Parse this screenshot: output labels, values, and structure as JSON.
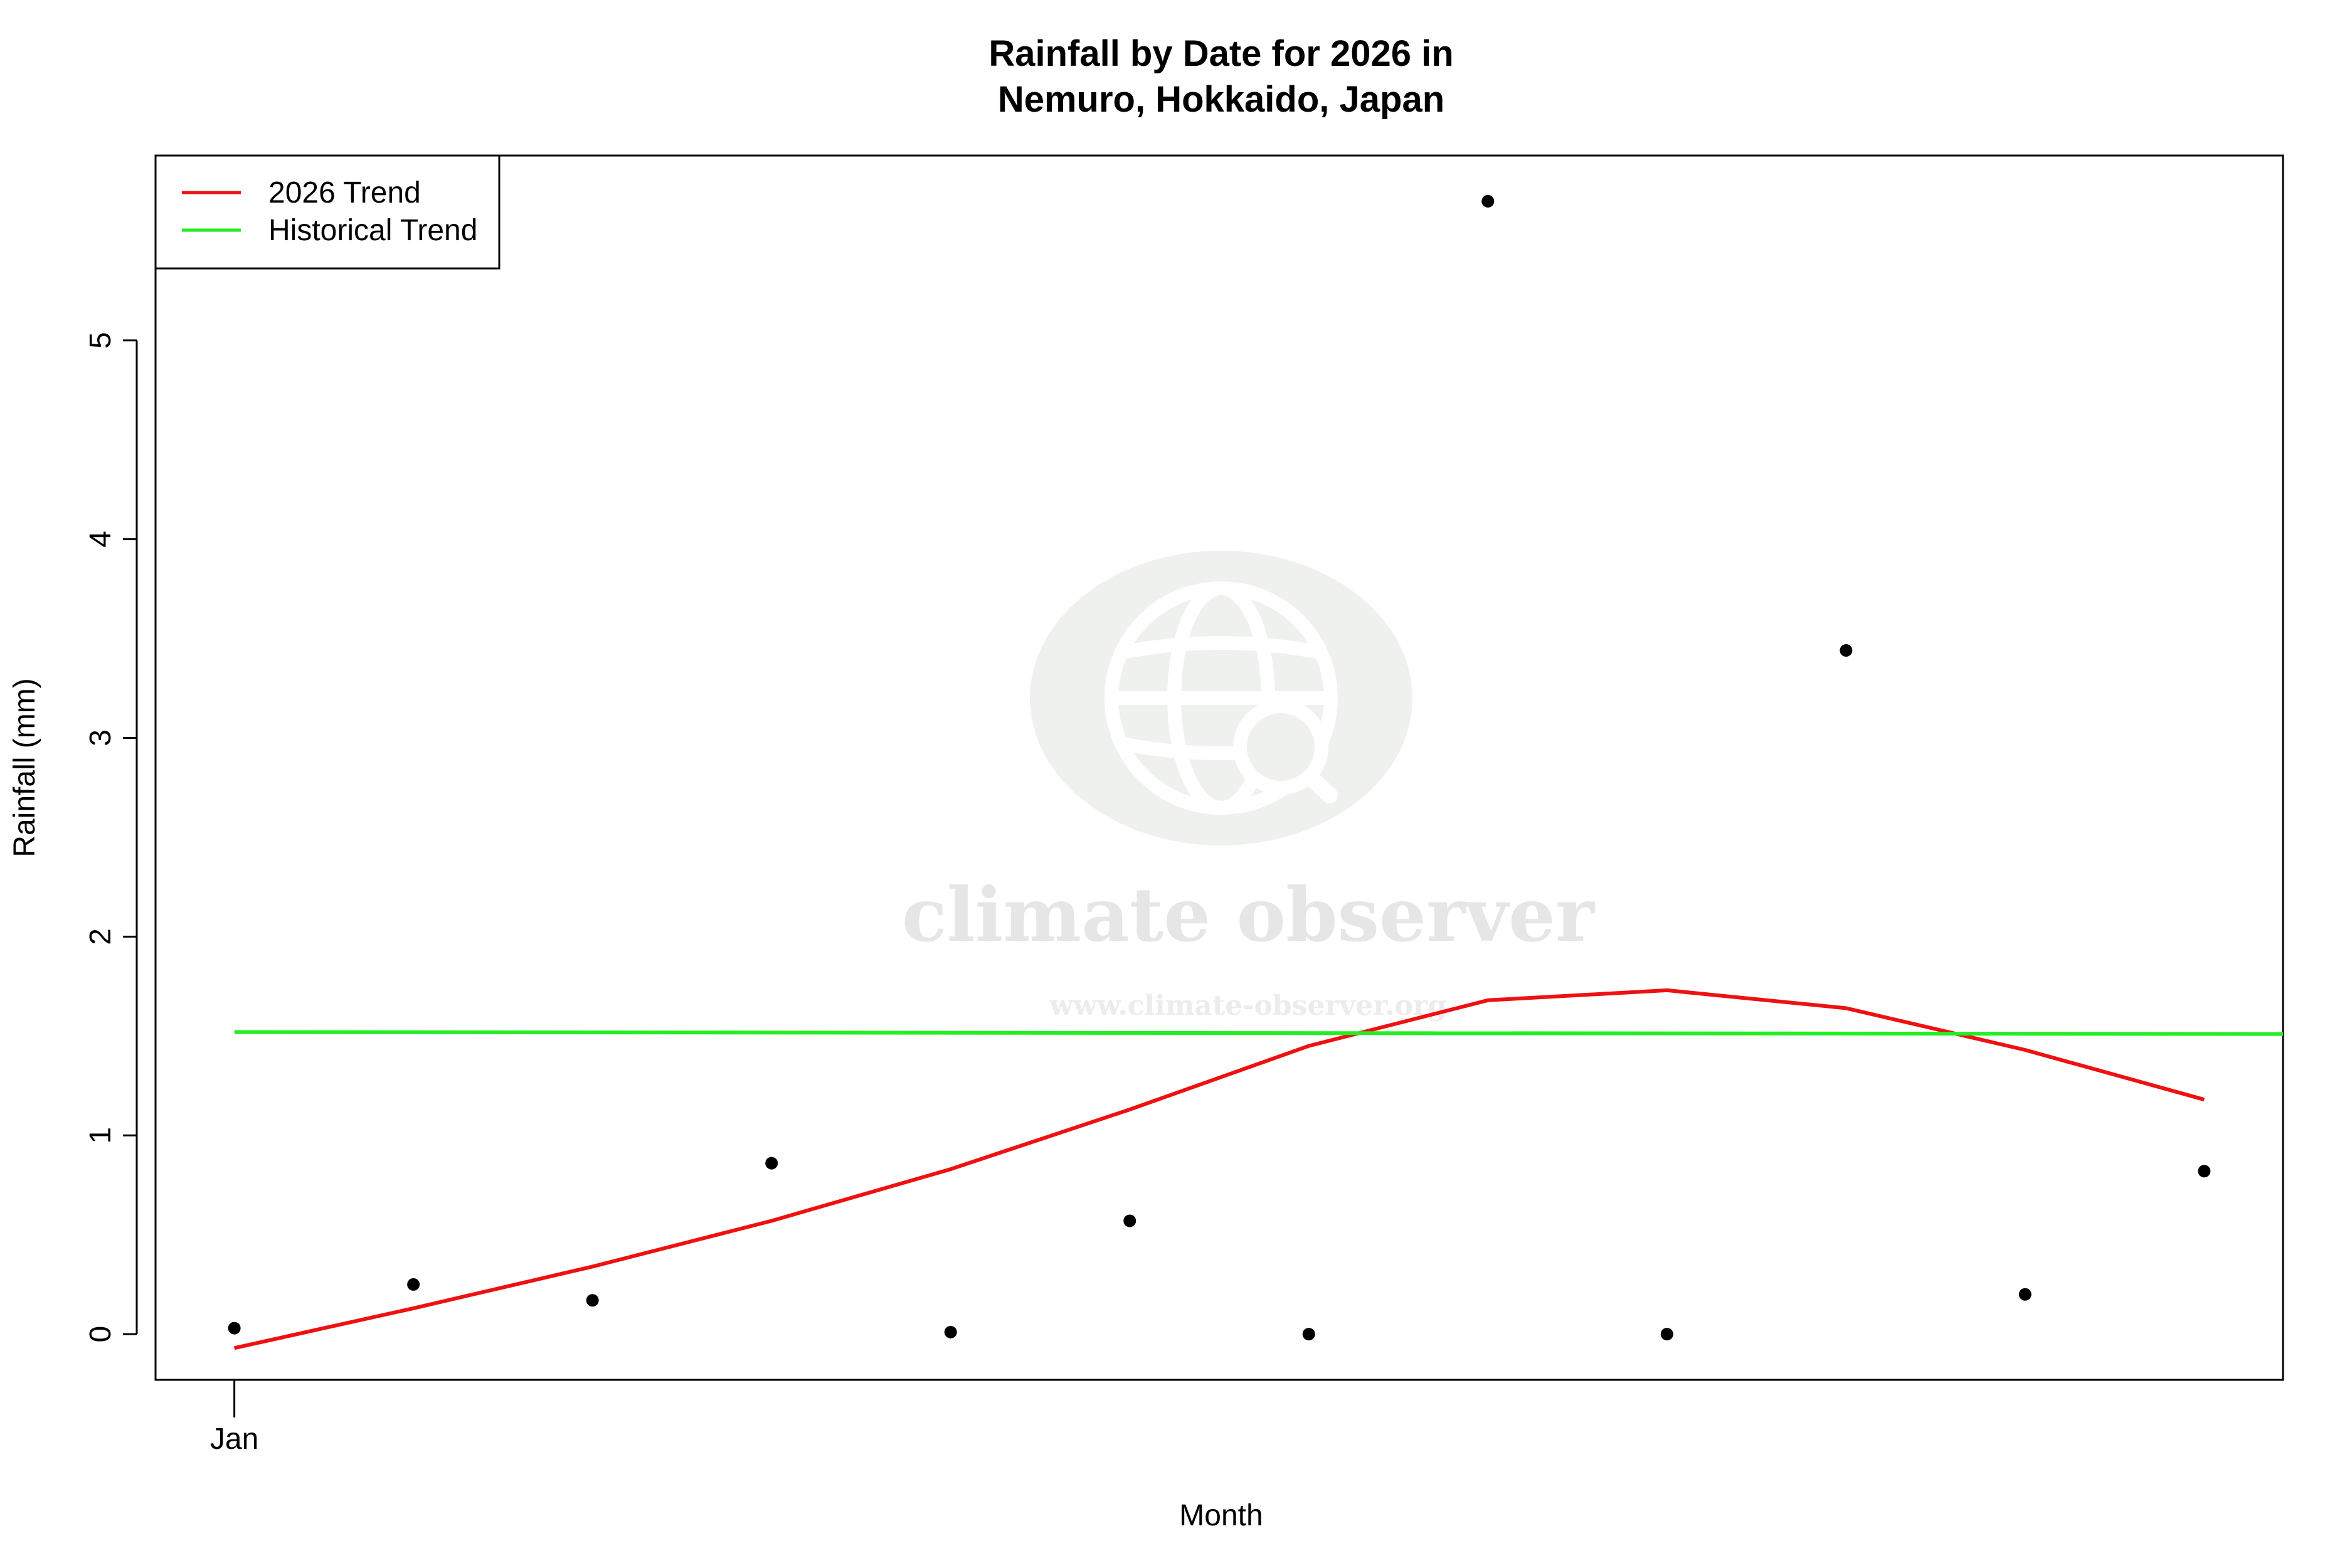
{
  "chart_data": {
    "type": "scatter",
    "title_line1": "Rainfall by Date for 2026 in",
    "title_line2": "Nemuro, Hokkaido, Japan",
    "xlabel": "Month",
    "ylabel": "Rainfall (mm)",
    "xlim": [
      0.56,
      12.44
    ],
    "ylim": [
      -0.23,
      5.93
    ],
    "x_ticks": [
      {
        "x": 1,
        "label": "Jan"
      }
    ],
    "y_ticks": [
      0,
      1,
      2,
      3,
      4,
      5
    ],
    "grid": false,
    "legend_position": "top-left",
    "points": {
      "x": [
        1,
        2,
        3,
        4,
        5,
        6,
        7,
        8,
        9,
        10,
        11,
        12
      ],
      "y": [
        0.03,
        0.25,
        0.17,
        0.86,
        0.01,
        0.57,
        0.0,
        5.7,
        0.0,
        3.44,
        0.2,
        0.82
      ],
      "color": "#000000"
    },
    "series": [
      {
        "name": "2026 Trend",
        "color": "#ee1111",
        "x": [
          1,
          2,
          3,
          4,
          5,
          6,
          7,
          8,
          9,
          10,
          11,
          12
        ],
        "y": [
          -0.07,
          0.13,
          0.34,
          0.57,
          0.83,
          1.13,
          1.45,
          1.68,
          1.73,
          1.64,
          1.43,
          1.18
        ]
      },
      {
        "name": "Historical Trend",
        "color": "#22ee22",
        "x": [
          1,
          12.44
        ],
        "y": [
          1.52,
          1.51
        ]
      }
    ]
  },
  "watermark": {
    "name": "climate observer",
    "url": "www.climate-observer.org",
    "icon": "globe-search-icon"
  }
}
